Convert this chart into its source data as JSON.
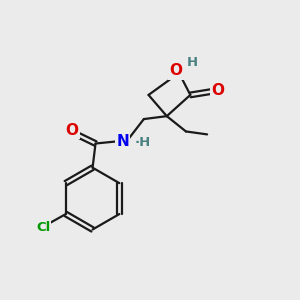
{
  "bg_color": "#ebebeb",
  "atom_colors": {
    "C": "#000000",
    "O": "#dd0000",
    "N": "#0000ee",
    "Cl": "#009900",
    "H": "#4a8080"
  },
  "bond_color": "#1a1a1a",
  "bond_width": 1.6,
  "font_size_atoms": 11,
  "font_size_small": 9.5
}
